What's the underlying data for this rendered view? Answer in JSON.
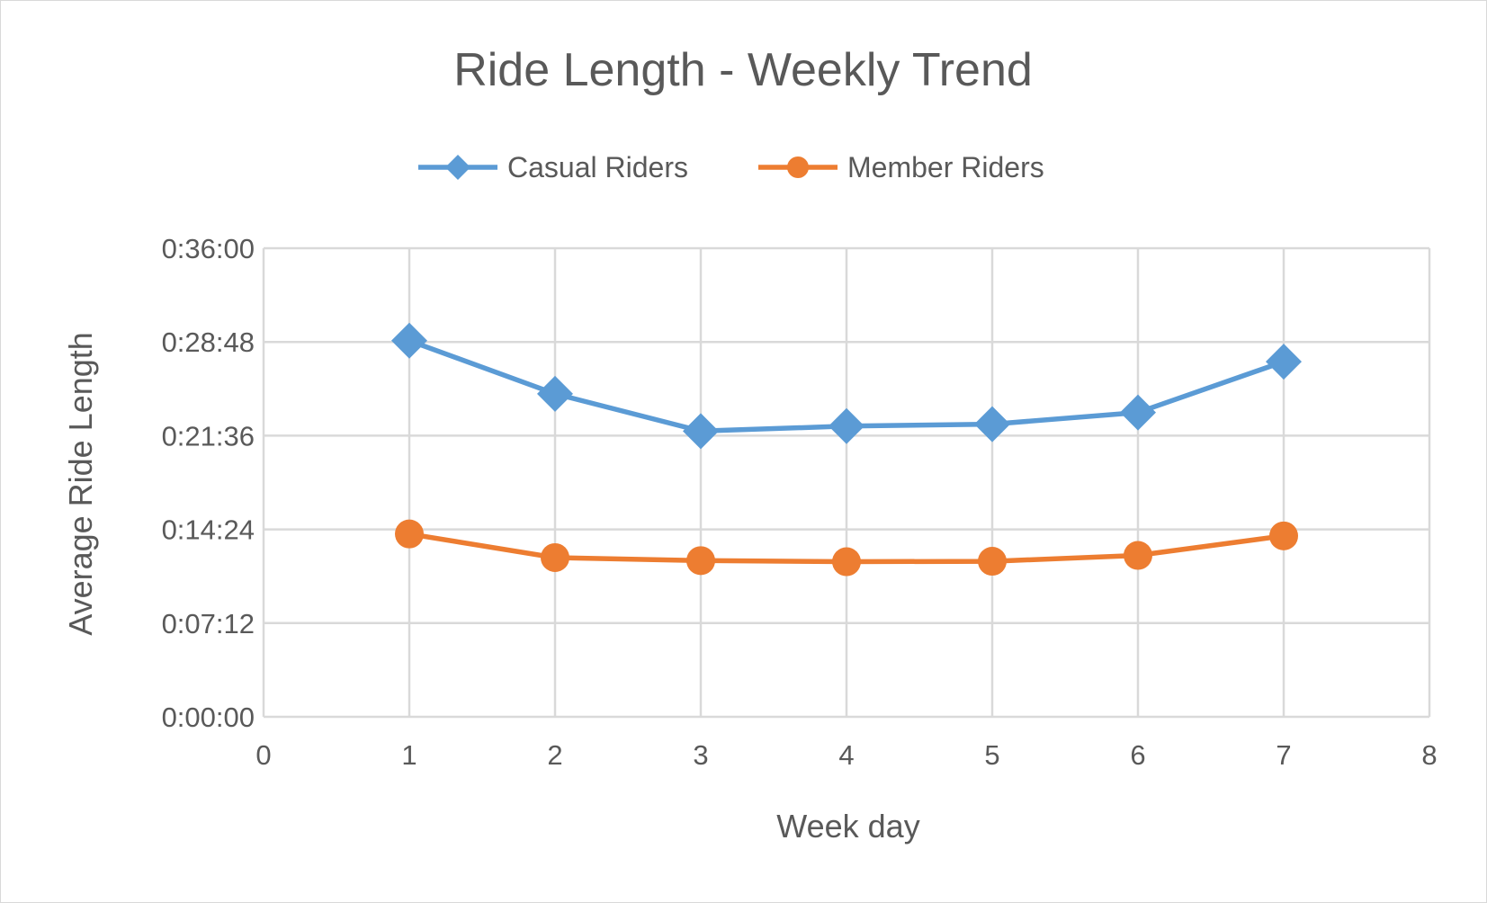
{
  "chart_data": {
    "type": "scatter",
    "title": "Ride Length - Weekly Trend",
    "xlabel": "Week day",
    "ylabel": "Average Ride Length",
    "xlim": [
      0,
      8
    ],
    "ylim_seconds": [
      0,
      2160
    ],
    "x_ticks": [
      "0",
      "1",
      "2",
      "3",
      "4",
      "5",
      "6",
      "7",
      "8"
    ],
    "y_ticks": [
      "0:00:00",
      "0:07:12",
      "0:14:24",
      "0:21:36",
      "0:28:48",
      "0:36:00"
    ],
    "grid": true,
    "legend_position": "top",
    "series": [
      {
        "name": "Casual Riders",
        "color": "#5b9bd5",
        "marker": "diamond",
        "x": [
          1,
          2,
          3,
          4,
          5,
          6,
          7
        ],
        "y_seconds": [
          1734,
          1489,
          1317,
          1340,
          1349,
          1403,
          1637
        ]
      },
      {
        "name": "Member Riders",
        "color": "#ed7d31",
        "marker": "circle",
        "x": [
          1,
          2,
          3,
          4,
          5,
          6,
          7
        ],
        "y_seconds": [
          843,
          734,
          720,
          715,
          717,
          744,
          834
        ]
      }
    ]
  }
}
